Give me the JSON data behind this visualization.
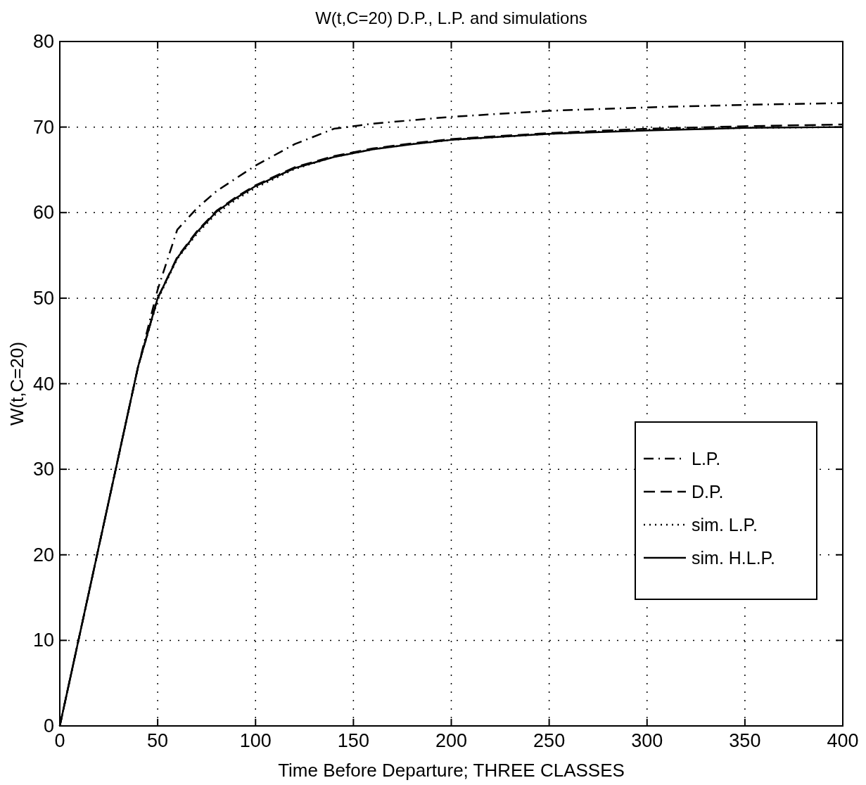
{
  "chart_data": {
    "type": "line",
    "title": "W(t,C=20) D.P., L.P. and simulations",
    "xlabel": "Time Before Departure; THREE CLASSES",
    "ylabel": "W(t,C=20)",
    "xlim": [
      0,
      400
    ],
    "ylim": [
      0,
      80
    ],
    "xticks": [
      0,
      50,
      100,
      150,
      200,
      250,
      300,
      350,
      400
    ],
    "yticks": [
      0,
      10,
      20,
      30,
      40,
      50,
      60,
      70,
      80
    ],
    "grid": true,
    "legend": "right",
    "series": [
      {
        "name": "L.P.",
        "color": "#000000",
        "line_style": "dashdot",
        "x": [
          0,
          10,
          20,
          30,
          40,
          50,
          60,
          70,
          80,
          100,
          120,
          140,
          160,
          200,
          250,
          300,
          350,
          400
        ],
        "values": [
          0,
          10.5,
          21,
          31.5,
          42,
          51,
          58,
          60.5,
          62.5,
          65.5,
          68,
          69.8,
          70.4,
          71.2,
          71.9,
          72.3,
          72.6,
          72.8
        ]
      },
      {
        "name": "D.P.",
        "color": "#000000",
        "line_style": "dashed",
        "x": [
          0,
          10,
          20,
          30,
          40,
          50,
          60,
          70,
          80,
          90,
          100,
          120,
          140,
          160,
          180,
          200,
          250,
          300,
          350,
          400
        ],
        "values": [
          0,
          10.5,
          21,
          31.5,
          42,
          50,
          54.8,
          57.8,
          60.2,
          61.8,
          63.2,
          65.3,
          66.6,
          67.5,
          68.1,
          68.6,
          69.3,
          69.8,
          70.1,
          70.3
        ]
      },
      {
        "name": "sim. L.P.",
        "color": "#000000",
        "line_style": "dotted",
        "x": [
          0,
          10,
          20,
          30,
          40,
          50,
          60,
          70,
          80,
          90,
          100,
          120,
          140,
          160,
          180,
          200,
          250,
          300,
          350,
          400
        ],
        "values": [
          0,
          10.5,
          21,
          31.5,
          42,
          49.8,
          54.6,
          57.5,
          59.9,
          61.5,
          62.9,
          65.1,
          66.5,
          67.4,
          68,
          68.5,
          69.2,
          69.7,
          69.9,
          70
        ]
      },
      {
        "name": "sim. H.L.P.",
        "color": "#000000",
        "line_style": "solid",
        "x": [
          0,
          10,
          20,
          30,
          40,
          50,
          60,
          70,
          80,
          90,
          100,
          120,
          140,
          160,
          180,
          200,
          250,
          300,
          350,
          400
        ],
        "values": [
          0,
          10.5,
          21,
          31.5,
          42,
          50,
          54.7,
          57.7,
          60.1,
          61.7,
          63.1,
          65.2,
          66.5,
          67.4,
          68,
          68.5,
          69.2,
          69.6,
          69.9,
          70
        ]
      }
    ]
  }
}
